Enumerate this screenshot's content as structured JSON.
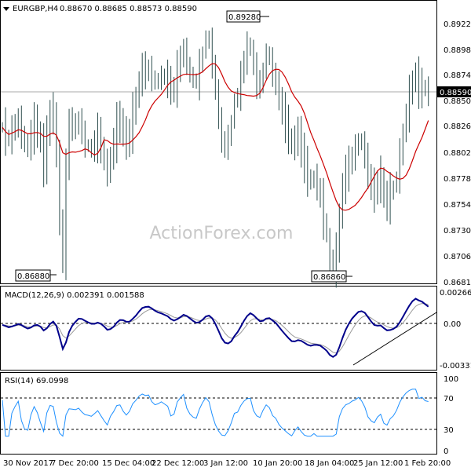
{
  "header": {
    "symbol": "EURGBP,H4",
    "ohlc": "0.88670 0.88685 0.88573 0.88590"
  },
  "watermark": "ActionForex.com",
  "price_axis": {
    "ticks": [
      "0.89225",
      "0.88980",
      "0.88740",
      "0.88500",
      "0.88260",
      "0.88020",
      "0.87780",
      "0.87540",
      "0.87300",
      "0.87060",
      "0.86815"
    ],
    "current": "0.88590"
  },
  "price_labels": {
    "high": "0.89280",
    "low1": "0.86880",
    "low2": "0.86860"
  },
  "time_axis": [
    "30 Nov 2017",
    "7 Dec 20:00",
    "15 Dec 04:00",
    "22 Dec 12:00",
    "3 Jan 12:00",
    "10 Jan 20:00",
    "18 Jan 04:00",
    "25 Jan 12:00",
    "1 Feb 20:00"
  ],
  "macd_panel": {
    "label": "MACD(12,26,9) 0.002391 0.001588",
    "ticks": [
      "0.002663",
      "0.00",
      "-0.003319"
    ]
  },
  "rsi_panel": {
    "label": "RSI(14) 69.0998",
    "ticks": [
      "100",
      "70",
      "30",
      "0"
    ]
  },
  "colors": {
    "price": "#2f4f4f",
    "ma": "#cc0000",
    "macd": "#00008b",
    "signal": "#999999",
    "rsi": "#1e90ff",
    "grid": "#000000"
  },
  "chart_data": [
    {
      "type": "line",
      "name": "price",
      "ylim": [
        0.86815,
        0.89225
      ],
      "x": [
        0,
        2,
        4,
        6,
        8,
        10,
        12,
        14,
        16,
        18,
        20,
        22,
        24,
        26,
        28,
        30,
        32,
        34,
        36,
        38,
        40,
        42,
        44,
        46,
        48,
        50,
        52,
        54,
        56,
        58,
        60,
        62,
        64,
        66,
        68,
        70,
        72,
        74,
        76,
        78,
        80,
        82,
        84,
        86,
        88,
        90,
        92,
        94,
        96,
        98,
        100,
        102,
        104,
        106,
        108,
        110,
        112,
        114,
        116,
        118,
        120,
        122,
        124,
        126,
        128,
        130,
        132,
        134,
        136,
        138,
        140,
        142,
        144,
        146,
        148,
        150,
        152,
        154,
        156,
        158,
        160,
        162,
        164,
        166,
        168,
        170,
        172,
        174,
        176,
        178,
        180,
        182,
        184,
        186,
        188,
        190,
        192,
        194,
        196,
        198,
        200,
        202,
        204,
        206,
        208,
        210,
        212,
        214,
        216,
        218,
        220,
        222,
        224,
        226,
        228,
        230,
        232,
        234,
        236,
        238,
        240,
        242,
        244,
        246,
        248,
        250,
        252,
        254,
        256,
        258,
        260,
        262,
        264,
        266,
        268
      ],
      "close": [
        0.8826,
        0.8818,
        0.8814,
        0.8824,
        0.8828,
        0.8832,
        0.882,
        0.881,
        0.8808,
        0.882,
        0.883,
        0.8824,
        0.881,
        0.879,
        0.882,
        0.884,
        0.8838,
        0.88,
        0.874,
        0.87,
        0.879,
        0.883,
        0.8828,
        0.8826,
        0.8834,
        0.882,
        0.881,
        0.8808,
        0.8805,
        0.8812,
        0.882,
        0.8808,
        0.8795,
        0.8782,
        0.88,
        0.8812,
        0.883,
        0.8832,
        0.882,
        0.8812,
        0.882,
        0.884,
        0.8852,
        0.887,
        0.888,
        0.8878,
        0.888,
        0.8872,
        0.8868,
        0.887,
        0.8874,
        0.8872,
        0.887,
        0.886,
        0.8862,
        0.888,
        0.889,
        0.89,
        0.8884,
        0.8875,
        0.887,
        0.8868,
        0.8882,
        0.8896,
        0.891,
        0.8905,
        0.8885,
        0.886,
        0.8835,
        0.8812,
        0.8808,
        0.8816,
        0.883,
        0.8852,
        0.8855,
        0.8874,
        0.889,
        0.89,
        0.8902,
        0.888,
        0.8868,
        0.8864,
        0.888,
        0.8895,
        0.889,
        0.8874,
        0.8868,
        0.8852,
        0.884,
        0.883,
        0.8818,
        0.8808,
        0.8815,
        0.882,
        0.8805,
        0.879,
        0.878,
        0.8775,
        0.878,
        0.877,
        0.876,
        0.874,
        0.8725,
        0.87,
        0.8695,
        0.871,
        0.8745,
        0.877,
        0.8785,
        0.879,
        0.88,
        0.8805,
        0.8815,
        0.881,
        0.88,
        0.878,
        0.877,
        0.8765,
        0.8775,
        0.878,
        0.876,
        0.8755,
        0.8765,
        0.877,
        0.878,
        0.88,
        0.882,
        0.884,
        0.8856,
        0.887,
        0.8875,
        0.886,
        0.8865,
        0.886,
        0.8859
      ]
    },
    {
      "type": "line",
      "name": "macd",
      "ylim": [
        -0.003319,
        0.002663
      ]
    },
    {
      "type": "line",
      "name": "rsi",
      "ylim": [
        0,
        100
      ]
    }
  ]
}
